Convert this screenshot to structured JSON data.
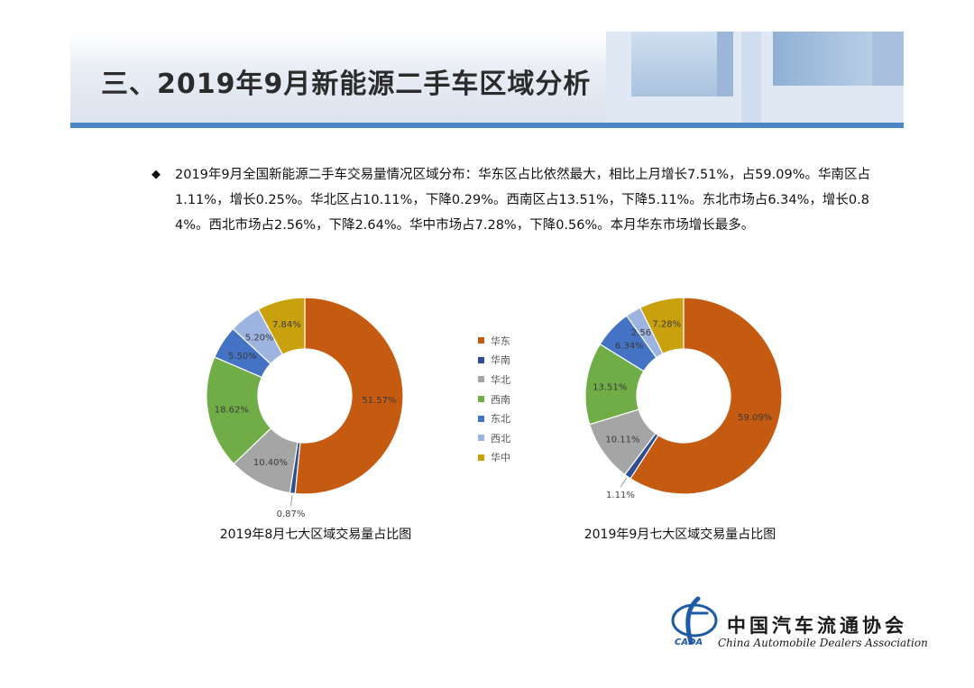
{
  "header": {
    "title": "三、2019年9月新能源二手车区域分析"
  },
  "summary": {
    "text": "2019年9月全国新能源二手车交易量情况区域分布：华东区占比依然最大，相比上月增长7.51%，占59.09%。华南区占1.11%，增长0.25%。华北区占10.11%，下降0.29%。西南区占13.51%，下降5.11%。东北市场占6.34%，增长0.84%。西北市场占2.56%，下降2.64%。华中市场占7.28%，下降0.56%。本月华东市场增长最多。"
  },
  "colors": {
    "华东": "#C55A11",
    "华南": "#2E4E8F",
    "华北": "#A5A5A5",
    "西南": "#70AD47",
    "东北": "#4472C4",
    "西北": "#9DB3E0",
    "华中": "#C9A10C",
    "banner_line": "#4a86c5"
  },
  "chart_data": [
    {
      "type": "pie",
      "variant": "donut",
      "title": "2019年8月七大区域交易量占比图",
      "categories": [
        "华东",
        "华南",
        "华北",
        "西南",
        "东北",
        "西北",
        "华中"
      ],
      "values": [
        51.57,
        0.87,
        10.4,
        18.62,
        5.5,
        5.2,
        7.84
      ],
      "labels": [
        "51.57%",
        "0.87%",
        "10.40%",
        "18.62%",
        "5.50%",
        "5.20%",
        "7.84%"
      ],
      "unit": "%",
      "legend": "center"
    },
    {
      "type": "pie",
      "variant": "donut",
      "title": "2019年9月七大区域交易量占比图",
      "categories": [
        "华东",
        "华南",
        "华北",
        "西南",
        "东北",
        "西北",
        "华中"
      ],
      "values": [
        59.09,
        1.11,
        10.11,
        13.51,
        6.34,
        2.56,
        7.28
      ],
      "labels": [
        "59.09%",
        "1.11%",
        "10.11%",
        "13.51%",
        "6.34%",
        "2.56%",
        "7.28%"
      ],
      "unit": "%",
      "legend": "center"
    }
  ],
  "legend": {
    "items": [
      "华东",
      "华南",
      "华北",
      "西南",
      "东北",
      "西北",
      "华中"
    ]
  },
  "footer": {
    "org_cn": "中国汽车流通协会",
    "org_en": "China Automobile Dealers Association",
    "org_abbr": "CADA"
  }
}
